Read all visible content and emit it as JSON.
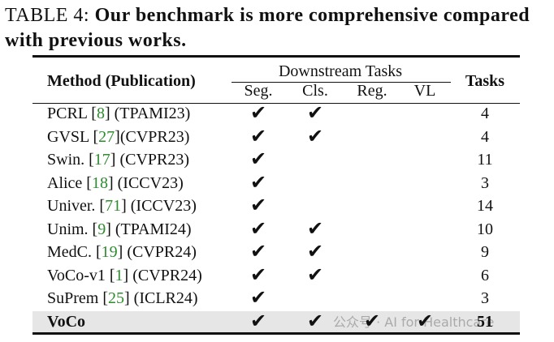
{
  "caption": {
    "label": "TABLE 4:",
    "text": "Our benchmark is more comprehensive compared with previous works."
  },
  "table": {
    "header": {
      "method": "Method (Publication)",
      "group": "Downstream Tasks",
      "subcolumns": [
        "Seg.",
        "Cls.",
        "Reg.",
        "VL"
      ],
      "tasks": "Tasks"
    },
    "rows": [
      {
        "name": "PCRL [",
        "ref": 8,
        "venue": "] (TPAMI23)",
        "checks": [
          "✔",
          "✔",
          null,
          null
        ],
        "tasks": 4
      },
      {
        "name": "GVSL [",
        "ref": 27,
        "venue": "](CVPR23)",
        "checks": [
          "✔",
          "✔",
          null,
          null
        ],
        "tasks": 4
      },
      {
        "name": "Swin. [",
        "ref": 17,
        "venue": "] (CVPR23)",
        "checks": [
          "✔",
          null,
          null,
          null
        ],
        "tasks": 11
      },
      {
        "name": "Alice [",
        "ref": 18,
        "venue": "] (ICCV23)",
        "checks": [
          "✔",
          null,
          null,
          null
        ],
        "tasks": 3
      },
      {
        "name": "Univer. [",
        "ref": 71,
        "venue": "] (ICCV23)",
        "checks": [
          "✔",
          null,
          null,
          null
        ],
        "tasks": 14
      },
      {
        "name": "Unim. [",
        "ref": 9,
        "venue": "] (TPAMI24)",
        "checks": [
          "✔",
          "✔",
          null,
          null
        ],
        "tasks": 10
      },
      {
        "name": "MedC. [",
        "ref": 19,
        "venue": "] (CVPR24)",
        "checks": [
          "✔",
          "✔",
          null,
          null
        ],
        "tasks": 9
      },
      {
        "name": "VoCo-v1 [",
        "ref": 1,
        "venue": "] (CVPR24)",
        "checks": [
          "✔",
          "✔",
          null,
          null
        ],
        "tasks": 6
      },
      {
        "name": "SuPrem [",
        "ref": 25,
        "venue": "] (ICLR24)",
        "checks": [
          "✔",
          null,
          null,
          null
        ],
        "tasks": 3
      },
      {
        "name": "VoCo",
        "ref": null,
        "venue": null,
        "checks": [
          "✔",
          "✔",
          "✔",
          "✔"
        ],
        "tasks": 51
      }
    ]
  },
  "watermark": "公众号 · AI for Healthcare"
}
